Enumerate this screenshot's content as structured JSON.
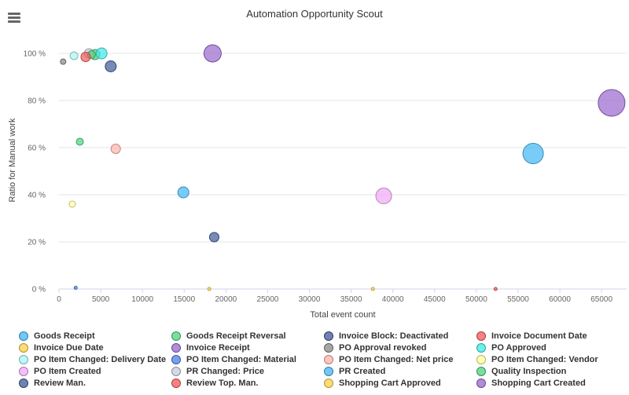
{
  "menu": {
    "icon": "hamburger-menu-icon"
  },
  "chart_data": {
    "type": "scatter",
    "title": "Automation Opportunity Scout",
    "xlabel": "Total event count",
    "ylabel": "Ratio for Manual work",
    "xlim": [
      0,
      68000
    ],
    "ylim": [
      0,
      100
    ],
    "xticks": [
      "0",
      "5000",
      "10000",
      "15000",
      "20000",
      "25000",
      "30000",
      "35000",
      "40000",
      "45000",
      "50000",
      "55000",
      "60000",
      "65000"
    ],
    "yticks": [
      "0 %",
      "20 %",
      "40 %",
      "60 %",
      "80 %",
      "100 %"
    ],
    "grid": true,
    "legend_position": "bottom",
    "series": [
      {
        "name": "Goods Receipt",
        "color": "#42b6f5",
        "points": [
          {
            "x": 14900,
            "y": 41,
            "r": 7
          }
        ]
      },
      {
        "name": "Goods Receipt Reversal",
        "color": "#4fd17d",
        "points": [
          {
            "x": 2500,
            "y": 62.5,
            "r": 4.5
          },
          {
            "x": 4300,
            "y": 99.5,
            "r": 6.5
          }
        ]
      },
      {
        "name": "Invoice Block: Deactivated",
        "color": "#3d5a96",
        "points": [
          {
            "x": 6200,
            "y": 94.5,
            "r": 7
          },
          {
            "x": 18600,
            "y": 22,
            "r": 6
          }
        ]
      },
      {
        "name": "Invoice Document Date",
        "color": "#f25a5a",
        "points": [
          {
            "x": 52300,
            "y": 0,
            "r": 2
          }
        ]
      },
      {
        "name": "Invoice Due Date",
        "color": "#ffcf4a",
        "points": [
          {
            "x": 18000,
            "y": 0,
            "r": 2
          }
        ]
      },
      {
        "name": "Invoice Receipt",
        "color": "#9966cc",
        "points": [
          {
            "x": 18400,
            "y": 100,
            "r": 11
          }
        ]
      },
      {
        "name": "PO Approval revoked",
        "color": "#888888",
        "points": [
          {
            "x": 500,
            "y": 96.5,
            "r": 3.5
          }
        ]
      },
      {
        "name": "PO Approved",
        "color": "#3fe8e8",
        "points": [
          {
            "x": 5100,
            "y": 100,
            "r": 7
          }
        ]
      },
      {
        "name": "PO Item Changed: Delivery Date",
        "color": "#a8f5f5",
        "points": [
          {
            "x": 1800,
            "y": 99,
            "r": 5
          }
        ]
      },
      {
        "name": "PO Item Changed: Material",
        "color": "#4d7de8",
        "points": [
          {
            "x": 2000,
            "y": 0.5,
            "r": 2
          }
        ]
      },
      {
        "name": "PO Item Changed: Net price",
        "color": "#ffb3a8",
        "points": [
          {
            "x": 6800,
            "y": 59.5,
            "r": 6
          }
        ]
      },
      {
        "name": "PO Item Changed: Vendor",
        "color": "#ffff99",
        "points": [
          {
            "x": 1600,
            "y": 36,
            "r": 4
          }
        ]
      },
      {
        "name": "PO Item Created",
        "color": "#f0a8f5",
        "points": [
          {
            "x": 38900,
            "y": 39.5,
            "r": 10
          }
        ]
      },
      {
        "name": "PR Changed: Price",
        "color": "#c5cbdf",
        "points": [
          {
            "x": 3600,
            "y": 100,
            "r": 6
          }
        ]
      },
      {
        "name": "PR Created",
        "color": "#42b6f5",
        "points": [
          {
            "x": 56800,
            "y": 57.5,
            "r": 13
          }
        ]
      },
      {
        "name": "Quality Inspection",
        "color": "#4fd17d",
        "points": [
          {
            "x": 3900,
            "y": 99.5,
            "r": 5
          }
        ]
      },
      {
        "name": "Review Man.",
        "color": "#3d5a96",
        "points": []
      },
      {
        "name": "Review Top. Man.",
        "color": "#f25a5a",
        "points": [
          {
            "x": 3200,
            "y": 98.5,
            "r": 6
          }
        ]
      },
      {
        "name": "Shopping Cart Approved",
        "color": "#ffcf4a",
        "points": [
          {
            "x": 37600,
            "y": 0,
            "r": 2
          }
        ]
      },
      {
        "name": "Shopping Cart Created",
        "color": "#9966cc",
        "points": [
          {
            "x": 66200,
            "y": 79,
            "r": 17
          }
        ]
      }
    ]
  }
}
